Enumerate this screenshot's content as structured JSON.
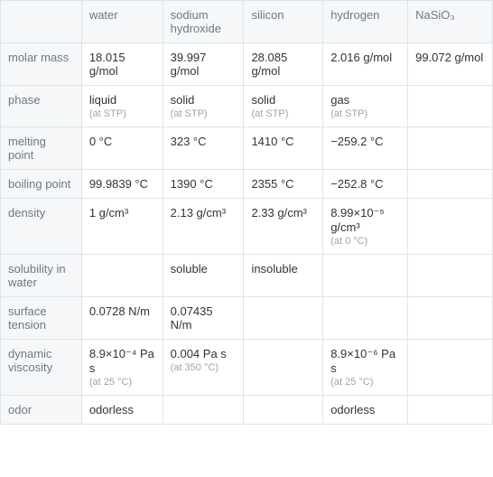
{
  "table": {
    "columns": [
      "water",
      "sodium hydroxide",
      "silicon",
      "hydrogen",
      "NaSiO₃"
    ],
    "rows": [
      {
        "label": "molar mass",
        "cells": [
          {
            "main": "18.015 g/mol",
            "sub": ""
          },
          {
            "main": "39.997 g/mol",
            "sub": ""
          },
          {
            "main": "28.085 g/mol",
            "sub": ""
          },
          {
            "main": "2.016 g/mol",
            "sub": ""
          },
          {
            "main": "99.072 g/mol",
            "sub": ""
          }
        ]
      },
      {
        "label": "phase",
        "cells": [
          {
            "main": "liquid",
            "sub": "(at STP)"
          },
          {
            "main": "solid",
            "sub": "(at STP)"
          },
          {
            "main": "solid",
            "sub": "(at STP)"
          },
          {
            "main": "gas",
            "sub": "(at STP)"
          },
          {
            "main": "",
            "sub": ""
          }
        ]
      },
      {
        "label": "melting point",
        "cells": [
          {
            "main": "0 °C",
            "sub": ""
          },
          {
            "main": "323 °C",
            "sub": ""
          },
          {
            "main": "1410 °C",
            "sub": ""
          },
          {
            "main": "−259.2 °C",
            "sub": ""
          },
          {
            "main": "",
            "sub": ""
          }
        ]
      },
      {
        "label": "boiling point",
        "cells": [
          {
            "main": "99.9839 °C",
            "sub": ""
          },
          {
            "main": "1390 °C",
            "sub": ""
          },
          {
            "main": "2355 °C",
            "sub": ""
          },
          {
            "main": "−252.8 °C",
            "sub": ""
          },
          {
            "main": "",
            "sub": ""
          }
        ]
      },
      {
        "label": "density",
        "cells": [
          {
            "main": "1 g/cm³",
            "sub": ""
          },
          {
            "main": "2.13 g/cm³",
            "sub": ""
          },
          {
            "main": "2.33 g/cm³",
            "sub": ""
          },
          {
            "main": "8.99×10⁻⁵ g/cm³",
            "sub": "(at 0 °C)"
          },
          {
            "main": "",
            "sub": ""
          }
        ]
      },
      {
        "label": "solubility in water",
        "cells": [
          {
            "main": "",
            "sub": ""
          },
          {
            "main": "soluble",
            "sub": ""
          },
          {
            "main": "insoluble",
            "sub": ""
          },
          {
            "main": "",
            "sub": ""
          },
          {
            "main": "",
            "sub": ""
          }
        ]
      },
      {
        "label": "surface tension",
        "cells": [
          {
            "main": "0.0728 N/m",
            "sub": ""
          },
          {
            "main": "0.07435 N/m",
            "sub": ""
          },
          {
            "main": "",
            "sub": ""
          },
          {
            "main": "",
            "sub": ""
          },
          {
            "main": "",
            "sub": ""
          }
        ]
      },
      {
        "label": "dynamic viscosity",
        "cells": [
          {
            "main": "8.9×10⁻⁴ Pa s",
            "sub": "(at 25 °C)"
          },
          {
            "main": "0.004 Pa s",
            "sub": "(at 350 °C)"
          },
          {
            "main": "",
            "sub": ""
          },
          {
            "main": "8.9×10⁻⁶ Pa s",
            "sub": "(at 25 °C)"
          },
          {
            "main": "",
            "sub": ""
          }
        ]
      },
      {
        "label": "odor",
        "cells": [
          {
            "main": "odorless",
            "sub": ""
          },
          {
            "main": "",
            "sub": ""
          },
          {
            "main": "",
            "sub": ""
          },
          {
            "main": "odorless",
            "sub": ""
          },
          {
            "main": "",
            "sub": ""
          }
        ]
      }
    ],
    "styling": {
      "border_color": "#dde4e8",
      "header_bg": "#f5f7f9",
      "header_text_color": "#6a7a85",
      "cell_text_color": "#333333",
      "sub_text_color": "#9aa5ad",
      "font_size_main": 13,
      "font_size_sub": 11,
      "background_color": "#ffffff"
    }
  }
}
